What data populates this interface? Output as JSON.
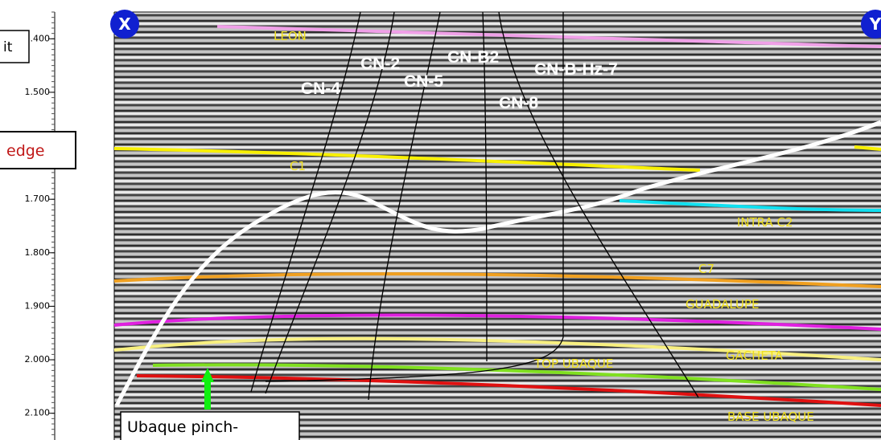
{
  "axis": {
    "lim": [
      1.35,
      2.15
    ],
    "ticks": [
      {
        "value": 1.4,
        "label": "1.400"
      },
      {
        "value": 1.5,
        "label": "1.500"
      },
      {
        "value": 1.7,
        "label": "1.700"
      },
      {
        "value": 1.8,
        "label": "1.800"
      },
      {
        "value": 1.9,
        "label": "1.900"
      },
      {
        "value": 2.0,
        "label": "2.000"
      },
      {
        "value": 2.1,
        "label": "2.100"
      }
    ]
  },
  "callouts": {
    "left_top": "it",
    "left_mid": "edge",
    "bottom": "Ubaque pinch-"
  },
  "markers": {
    "left": "X",
    "right": "Y"
  },
  "horizons": {
    "leon": "LEON",
    "c1": "C1",
    "intra_c2": "INTRA C2",
    "c7": "C7",
    "guadalupe": "GUADALUPE",
    "gacheta": "GACHETA",
    "top_ubaque": "TOP UBAQUE",
    "base_ubaque": "BASE UBAQUE"
  },
  "wells": {
    "cn4": "CN-4",
    "cn2": "CN-2",
    "cn5": "CN-5",
    "cnb2": "CN-B2",
    "cnbhz7": "CN-B-Hz-7",
    "cn8": "CN-8"
  }
}
